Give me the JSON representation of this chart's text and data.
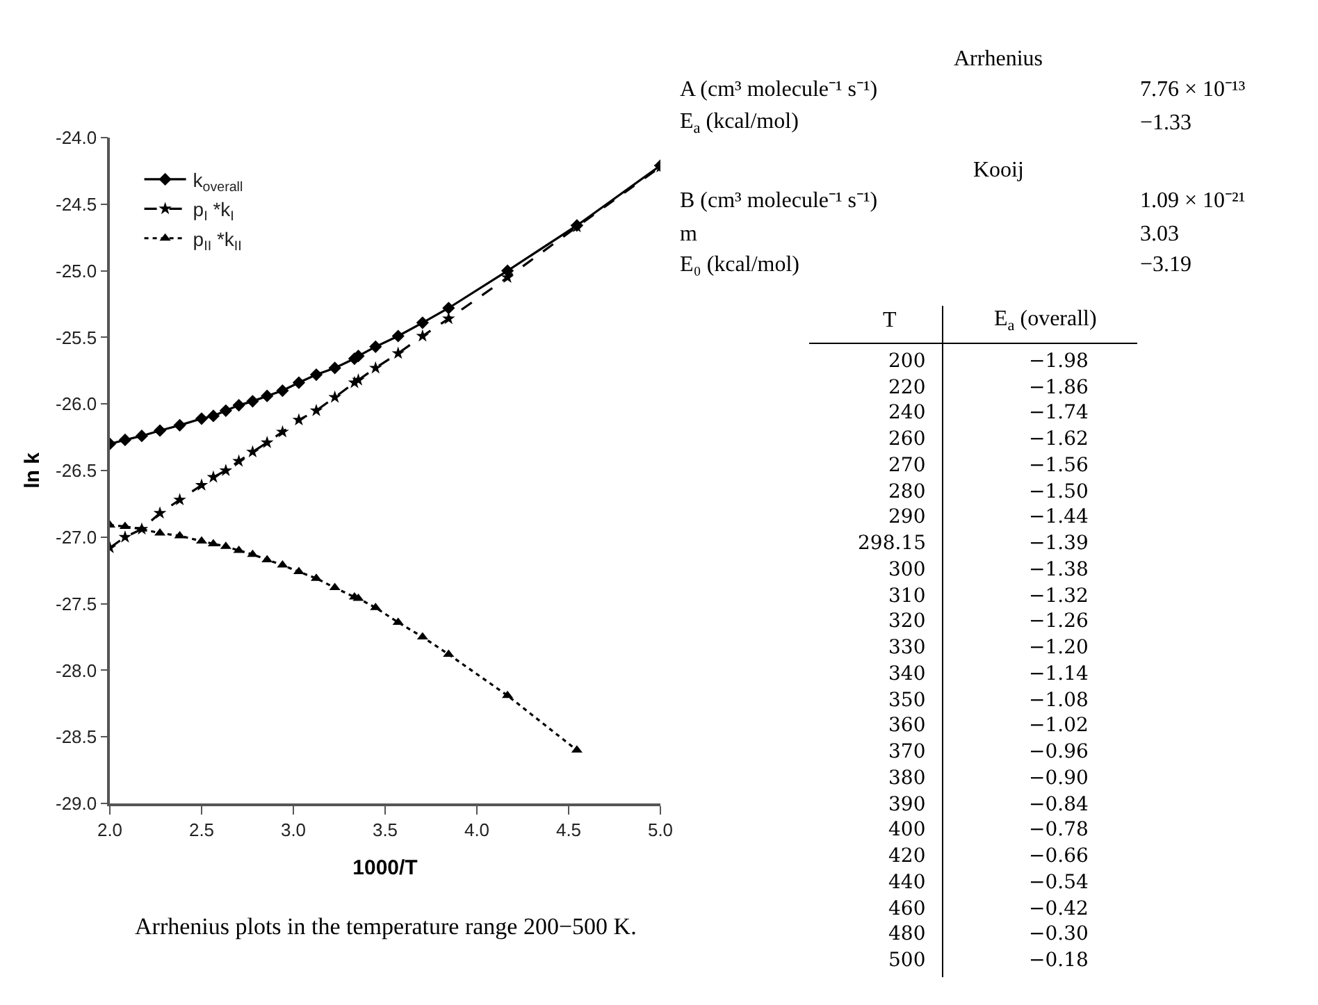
{
  "chart_data": [
    {
      "type": "line",
      "xlabel": "1000/T",
      "ylabel": "ln k",
      "x": [
        2.0,
        2.083,
        2.174,
        2.273,
        2.381,
        2.5,
        2.564,
        2.632,
        2.703,
        2.778,
        2.857,
        2.941,
        3.03,
        3.125,
        3.226,
        3.333,
        3.354,
        3.448,
        3.571,
        3.704,
        3.846,
        4.167,
        4.545,
        5.0
      ],
      "series": [
        {
          "name": "k$_{overall}$",
          "color": "#000000",
          "marker": "diamond",
          "line_style": "solid",
          "values": [
            -26.3,
            -26.27,
            -26.24,
            -26.2,
            -26.16,
            -26.11,
            -26.09,
            -26.05,
            -26.01,
            -25.98,
            -25.94,
            -25.9,
            -25.84,
            -25.78,
            -25.73,
            -25.66,
            -25.64,
            -25.57,
            -25.49,
            -25.39,
            -25.28,
            -25.0,
            -24.66,
            -24.21
          ]
        },
        {
          "name": "p$_{I}$ *k$_{I}$",
          "color": "#000000",
          "marker": "star",
          "line_style": "dashed",
          "values": [
            -27.08,
            -27.0,
            -26.94,
            -26.82,
            -26.72,
            -26.61,
            -26.55,
            -26.5,
            -26.43,
            -26.36,
            -26.29,
            -26.21,
            -26.12,
            -26.05,
            -25.95,
            -25.84,
            -25.82,
            -25.73,
            -25.62,
            -25.49,
            -25.36,
            -25.05,
            -24.67,
            -24.22
          ]
        },
        {
          "name": "p$_{II}$ *k$_{II}$",
          "color": "#000000",
          "marker": "triangle",
          "line_style": "dotted",
          "values": [
            -26.91,
            -26.92,
            -26.94,
            -26.97,
            -26.99,
            -27.03,
            -27.05,
            -27.07,
            -27.1,
            -27.13,
            -27.17,
            -27.21,
            -27.26,
            -27.31,
            -27.38,
            -27.45,
            -27.46,
            -27.53,
            -27.64,
            -27.75,
            -27.88,
            -28.19,
            -28.6,
            null
          ]
        }
      ],
      "xlim": [
        2.0,
        5.0
      ],
      "xticks": [
        {
          "value": 2.0,
          "label": "2.0"
        },
        {
          "value": 2.5,
          "label": "2.5"
        },
        {
          "value": 3.0,
          "label": "3.0"
        },
        {
          "value": 3.5,
          "label": "3.5"
        },
        {
          "value": 4.0,
          "label": "4.0"
        },
        {
          "value": 4.5,
          "label": "4.5"
        },
        {
          "value": 5.0,
          "label": "5.0"
        }
      ],
      "ylim": [
        -29.0,
        -24.0
      ],
      "yticks": [
        {
          "value": -29.0,
          "label": "-29.0"
        },
        {
          "value": -28.5,
          "label": "-28.5"
        },
        {
          "value": -28.0,
          "label": "-28.0"
        },
        {
          "value": -27.5,
          "label": "-27.5"
        },
        {
          "value": -27.0,
          "label": "-27.0"
        },
        {
          "value": -26.5,
          "label": "-26.5"
        },
        {
          "value": -26.0,
          "label": "-26.0"
        },
        {
          "value": -25.5,
          "label": "-25.5"
        },
        {
          "value": -25.0,
          "label": "-25.0"
        },
        {
          "value": -24.5,
          "label": "-24.5"
        },
        {
          "value": -24.0,
          "label": "-24.0"
        }
      ],
      "legend": "top left",
      "annotations": [
        "Arrhenius plots in the temperature range 200−500 K."
      ]
    },
    {
      "type": "other",
      "annotations": [
        "Arrhenius",
        "A (cm³ molecule⁻¹ s⁻¹)",
        "7.76 × 10⁻¹³",
        "E$_{a}$ (kcal/mol)",
        "−1.33",
        "Kooij",
        "B (cm³ molecule⁻¹ s⁻¹)",
        "1.09 × 10⁻²¹",
        "m",
        "3.03",
        "E₀ (kcal/mol)",
        "−3.19",
        "T",
        "E$_{a}$ (overall)",
        "200",
        "−1.98",
        "220",
        "−1.86",
        "240",
        "−1.74",
        "260",
        "−1.62",
        "270",
        "−1.56",
        "280",
        "−1.50",
        "290",
        "−1.44",
        "298.15",
        "−1.39",
        "300",
        "−1.38",
        "310",
        "−1.32",
        "320",
        "−1.26",
        "330",
        "−1.20",
        "340",
        "−1.14",
        "350",
        "−1.08",
        "360",
        "−1.02",
        "370",
        "−0.96",
        "380",
        "−0.90",
        "390",
        "−0.84",
        "400",
        "−0.78",
        "420",
        "−0.66",
        "440",
        "−0.54",
        "460",
        "−0.42",
        "480",
        "−0.30",
        "500",
        "−0.18"
      ]
    }
  ]
}
